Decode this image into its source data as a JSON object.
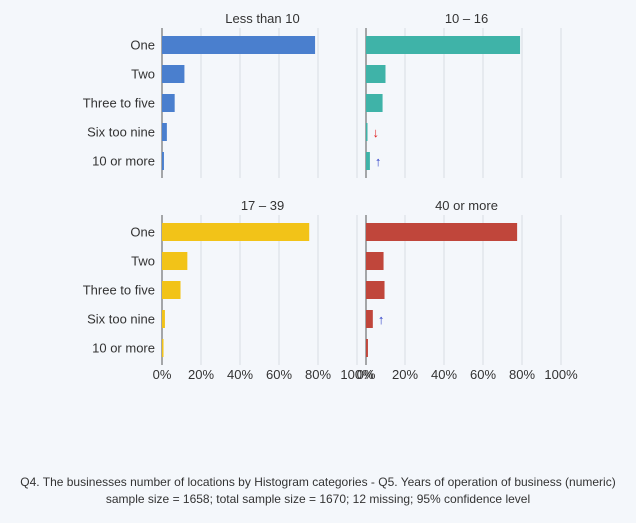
{
  "chart_data": {
    "type": "bar",
    "orientation": "horizontal",
    "categories": [
      "One",
      "Two",
      "Three to five",
      "Six too nine",
      "10 or more"
    ],
    "x_ticks": [
      "0%",
      "20%",
      "40%",
      "60%",
      "80%",
      "100%"
    ],
    "xlim": [
      0,
      100
    ],
    "grid": true,
    "panels": [
      {
        "title": "Less than 10",
        "color": "#4a7fce",
        "values": [
          78.5,
          11.5,
          6.5,
          2.5,
          1
        ],
        "markers": [
          null,
          null,
          null,
          null,
          null
        ]
      },
      {
        "title": "10 – 16",
        "color": "#3fb3a8",
        "values": [
          79,
          10,
          8.5,
          0.5,
          2
        ],
        "markers": [
          null,
          null,
          null,
          "↓",
          "↑"
        ]
      },
      {
        "title": "17 – 39",
        "color": "#f2c318",
        "values": [
          75.5,
          13,
          9.5,
          1.5,
          0.5
        ],
        "markers": [
          null,
          null,
          null,
          null,
          null
        ]
      },
      {
        "title": "40 or more",
        "color": "#c0463b",
        "values": [
          77.5,
          9,
          9.5,
          3.5,
          1
        ],
        "markers": [
          null,
          null,
          null,
          "↑",
          null
        ]
      }
    ],
    "marker_colors": {
      "↓": "#e02020",
      "↑": "#2a3cc8"
    }
  },
  "footer": {
    "line1": "Q4. The businesses number of locations by Histogram categories - Q5. Years of operation of business (numeric)",
    "line2": "sample size = 1658; total sample size = 1670; 12 missing; 95% confidence level"
  }
}
